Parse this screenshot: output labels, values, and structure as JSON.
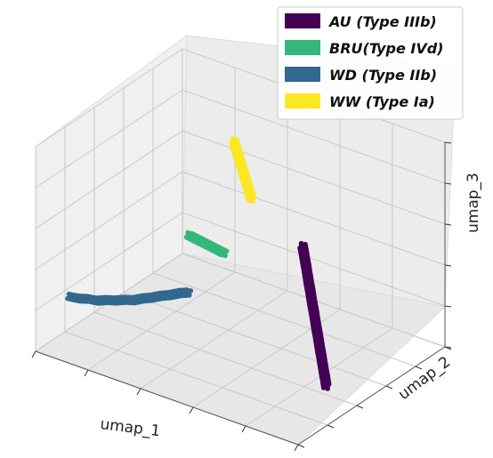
{
  "chart_data": {
    "type": "scatter",
    "projection": "3d",
    "title": "",
    "xlabel": "umap_1",
    "ylabel": "umap_2",
    "zlabel": "umap_3",
    "grid": true,
    "legend_position": "top-right",
    "series": [
      {
        "name": "AU (Type IIIb)",
        "color": "#440154",
        "x": [
          6.0,
          6.3,
          6.6,
          6.9,
          7.2,
          7.5,
          7.8,
          8.1,
          8.4,
          8.7,
          9.0,
          9.3,
          9.6,
          9.9,
          10.2,
          10.5,
          10.8,
          11.1,
          11.4,
          11.7
        ],
        "y": [
          8.5,
          8.3,
          8.1,
          7.9,
          7.7,
          7.5,
          7.3,
          7.1,
          6.9,
          6.7,
          6.5,
          6.3,
          6.1,
          5.9,
          5.7,
          5.5,
          5.3,
          5.1,
          4.9,
          4.7
        ],
        "z": [
          6.5,
          6.3,
          6.0,
          5.8,
          5.5,
          5.2,
          5.0,
          4.7,
          4.4,
          4.2,
          3.9,
          3.6,
          3.4,
          3.1,
          2.8,
          2.6,
          2.3,
          2.0,
          1.8,
          1.5
        ]
      },
      {
        "name": "BRU(Type IVd)",
        "color": "#35b779",
        "x": [
          3.0,
          3.1,
          3.2,
          3.3,
          3.4,
          3.5,
          3.6,
          3.7,
          3.8,
          3.9,
          4.0
        ],
        "y": [
          5.0,
          5.1,
          5.2,
          5.3,
          5.4,
          5.5,
          5.6,
          5.7,
          5.8,
          5.9,
          6.0
        ],
        "z": [
          9.5,
          9.3,
          9.1,
          8.9,
          8.7,
          8.5,
          8.3,
          8.1,
          7.9,
          7.7,
          7.5
        ]
      },
      {
        "name": "WD (Type IIb)",
        "color": "#31688e",
        "x": [
          -2.0,
          -1.5,
          -1.0,
          -0.5,
          0.0,
          0.5,
          1.0,
          1.5,
          2.0,
          2.5,
          3.0,
          3.5,
          4.0,
          4.5
        ],
        "y": [
          3.0,
          3.0,
          3.1,
          3.1,
          3.2,
          3.2,
          3.3,
          3.3,
          3.4,
          3.4,
          3.5,
          3.5,
          3.6,
          3.6
        ],
        "z": [
          4.0,
          4.1,
          4.2,
          4.3,
          4.5,
          4.7,
          4.9,
          5.1,
          5.4,
          5.7,
          6.0,
          6.3,
          6.6,
          6.9
        ]
      },
      {
        "name": "WW (Type Ia)",
        "color": "#fde725",
        "x": [
          3.5,
          3.55,
          3.6,
          3.65,
          3.7,
          3.75,
          3.8,
          3.85,
          3.9,
          3.95,
          4.0
        ],
        "y": [
          7.0,
          7.05,
          7.1,
          7.15,
          7.2,
          7.25,
          7.3,
          7.35,
          7.4,
          7.45,
          7.5
        ],
        "z": [
          15.5,
          15.0,
          14.5,
          14.0,
          13.5,
          13.0,
          12.5,
          12.0,
          11.5,
          11.0,
          10.5
        ]
      }
    ]
  }
}
